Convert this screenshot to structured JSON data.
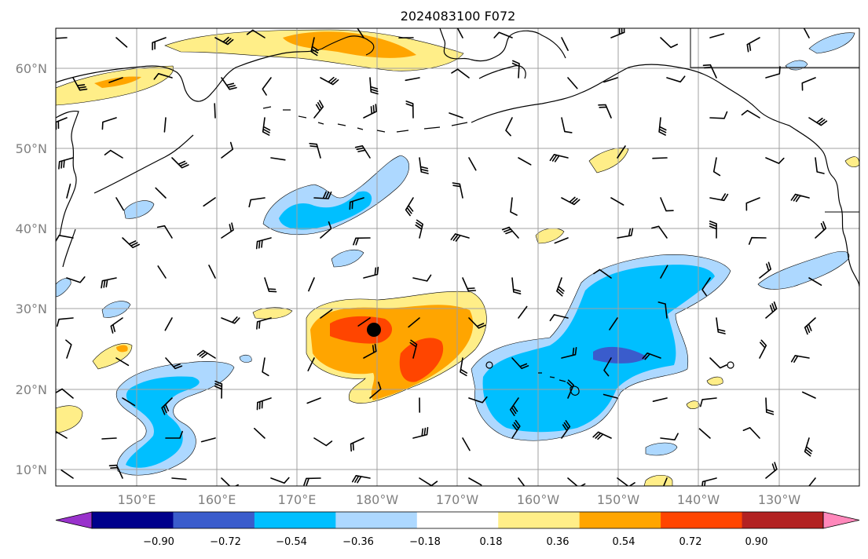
{
  "title": "2024083100 F072",
  "map": {
    "lat_labels": [
      "60°N",
      "50°N",
      "40°N",
      "30°N",
      "20°N",
      "10°N"
    ],
    "lon_labels": [
      "150°E",
      "160°E",
      "170°E",
      "180°W",
      "170°W",
      "160°W",
      "150°W",
      "140°W",
      "130°W"
    ],
    "lat_range": [
      8,
      65
    ],
    "lon_range_east_deg": [
      140,
      242
    ],
    "storm_marker": {
      "name": "storm-center-icon",
      "lat": 27.3,
      "lon": 180.5
    }
  },
  "colorbar": {
    "ticks": [
      "−0.90",
      "−0.72",
      "−0.54",
      "−0.36",
      "−0.18",
      "0.18",
      "0.36",
      "0.54",
      "0.72",
      "0.90"
    ],
    "colors": [
      "#9932cc",
      "#00008b",
      "#3a5ccc",
      "#00bfff",
      "#add8ff",
      "#ffffff",
      "#ffee88",
      "#ffa500",
      "#ff4500",
      "#b22222",
      "#ff88bb"
    ]
  }
}
